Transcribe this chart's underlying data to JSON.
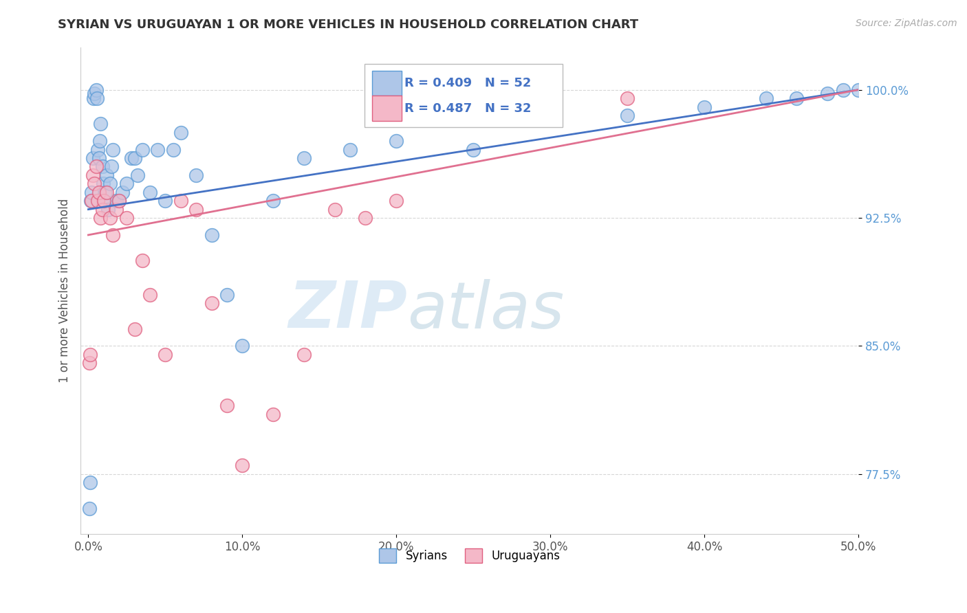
{
  "title": "SYRIAN VS URUGUAYAN 1 OR MORE VEHICLES IN HOUSEHOLD CORRELATION CHART",
  "source": "Source: ZipAtlas.com",
  "ylabel": "1 or more Vehicles in Household",
  "xlim": [
    -0.5,
    50.0
  ],
  "ylim": [
    74.0,
    102.5
  ],
  "xticks": [
    0.0,
    10.0,
    20.0,
    30.0,
    40.0,
    50.0
  ],
  "yticks": [
    77.5,
    85.0,
    92.5,
    100.0
  ],
  "ytick_labels": [
    "77.5%",
    "85.0%",
    "92.5%",
    "100.0%"
  ],
  "xtick_labels": [
    "0.0%",
    "10.0%",
    "20.0%",
    "30.0%",
    "40.0%",
    "50.0%"
  ],
  "syrian_color": "#aec6e8",
  "uruguayan_color": "#f4b8c8",
  "syrian_edge": "#5b9bd5",
  "uruguayan_edge": "#e06080",
  "trend_blue": "#4472c4",
  "trend_pink": "#e07090",
  "R_syrian": 0.409,
  "N_syrian": 52,
  "R_uruguayan": 0.487,
  "N_uruguayan": 32,
  "legend_labels": [
    "Syrians",
    "Uruguayans"
  ],
  "watermark_zip": "ZIP",
  "watermark_atlas": "atlas",
  "syrian_x": [
    0.05,
    0.1,
    0.15,
    0.2,
    0.3,
    0.35,
    0.4,
    0.5,
    0.55,
    0.6,
    0.7,
    0.75,
    0.8,
    0.9,
    0.95,
    1.0,
    1.1,
    1.2,
    1.3,
    1.4,
    1.5,
    1.6,
    1.8,
    2.0,
    2.2,
    2.5,
    2.8,
    3.0,
    3.2,
    3.5,
    4.0,
    4.5,
    5.0,
    5.5,
    6.0,
    7.0,
    8.0,
    9.0,
    10.0,
    12.0,
    14.0,
    17.0,
    20.0,
    25.0,
    30.0,
    35.0,
    40.0,
    44.0,
    46.0,
    48.0,
    49.0,
    50.0
  ],
  "syrian_y": [
    75.5,
    77.0,
    93.5,
    94.0,
    96.0,
    99.5,
    99.8,
    100.0,
    99.5,
    96.5,
    96.0,
    97.0,
    98.0,
    95.5,
    94.5,
    93.5,
    94.0,
    95.0,
    93.0,
    94.5,
    95.5,
    96.5,
    93.5,
    93.5,
    94.0,
    94.5,
    96.0,
    96.0,
    95.0,
    96.5,
    94.0,
    96.5,
    93.5,
    96.5,
    97.5,
    95.0,
    91.5,
    88.0,
    85.0,
    93.5,
    96.0,
    96.5,
    97.0,
    96.5,
    98.5,
    98.5,
    99.0,
    99.5,
    99.5,
    99.8,
    100.0,
    100.0
  ],
  "uruguayan_x": [
    0.05,
    0.1,
    0.2,
    0.3,
    0.4,
    0.5,
    0.6,
    0.7,
    0.8,
    0.9,
    1.0,
    1.2,
    1.4,
    1.6,
    1.8,
    2.0,
    2.5,
    3.0,
    3.5,
    4.0,
    5.0,
    6.0,
    7.0,
    8.0,
    9.0,
    10.0,
    12.0,
    14.0,
    16.0,
    18.0,
    20.0,
    35.0
  ],
  "uruguayan_y": [
    84.0,
    84.5,
    93.5,
    95.0,
    94.5,
    95.5,
    93.5,
    94.0,
    92.5,
    93.0,
    93.5,
    94.0,
    92.5,
    91.5,
    93.0,
    93.5,
    92.5,
    86.0,
    90.0,
    88.0,
    84.5,
    93.5,
    93.0,
    87.5,
    81.5,
    78.0,
    81.0,
    84.5,
    93.0,
    92.5,
    93.5,
    99.5
  ]
}
